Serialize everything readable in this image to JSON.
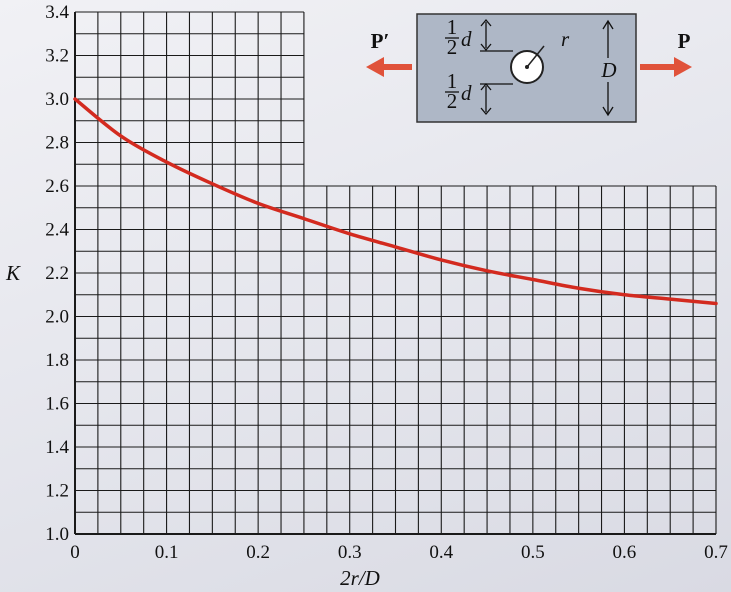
{
  "chart_data": {
    "type": "line",
    "title": "",
    "xlabel": "2r/D",
    "ylabel": "K",
    "xlim": [
      0,
      0.7
    ],
    "ylim": [
      1.0,
      3.4
    ],
    "x_ticks": [
      "0",
      "0.1",
      "0.2",
      "0.3",
      "0.4",
      "0.5",
      "0.6",
      "0.7"
    ],
    "y_ticks": [
      "1.0",
      "1.2",
      "1.4",
      "1.6",
      "1.8",
      "2.0",
      "2.2",
      "2.4",
      "2.6",
      "2.8",
      "3.0",
      "3.2",
      "3.4"
    ],
    "grid": true,
    "grid_upper_region_xmax": 0.25,
    "series": [
      {
        "color": "#d32a1f",
        "x": [
          0,
          0.05,
          0.1,
          0.15,
          0.2,
          0.25,
          0.3,
          0.35,
          0.4,
          0.45,
          0.5,
          0.55,
          0.6,
          0.65,
          0.7
        ],
        "y": [
          3.0,
          2.83,
          2.71,
          2.61,
          2.52,
          2.45,
          2.38,
          2.32,
          2.26,
          2.21,
          2.17,
          2.13,
          2.1,
          2.08,
          2.06
        ]
      }
    ]
  },
  "diagram": {
    "load_left": "P′",
    "load_right": "P",
    "half_d_top": "d",
    "half_d_bottom": "d",
    "fraction_num": "1",
    "fraction_den": "2",
    "radius_label": "r",
    "width_label": "D",
    "arrow_color": "#e0523a",
    "plate_color": "#aeb7c6"
  }
}
